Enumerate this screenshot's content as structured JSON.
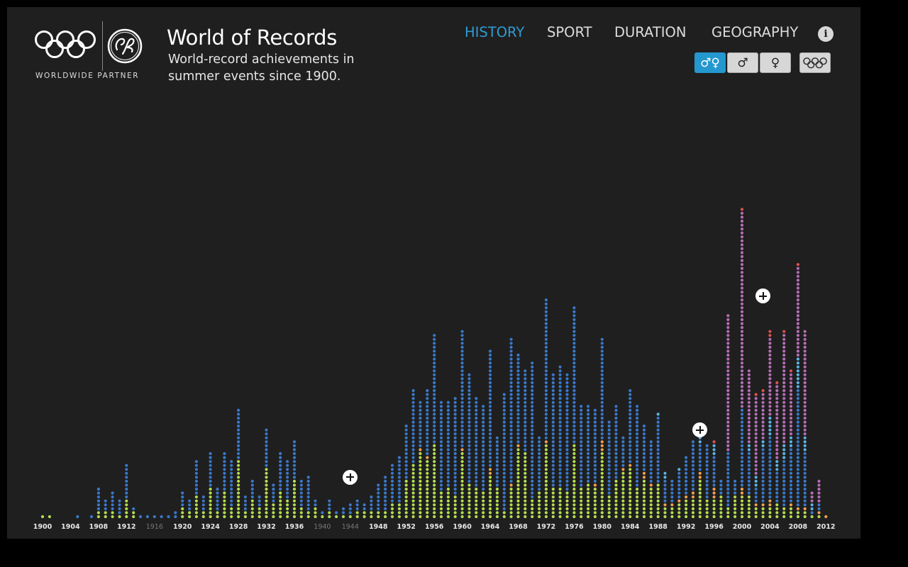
{
  "header": {
    "partner_label": "WORLDWIDE PARTNER",
    "title": "World of Records",
    "subtitle": "World-record achievements in summer events since 1900."
  },
  "nav": {
    "items": [
      {
        "label": "HISTORY",
        "active": true
      },
      {
        "label": "SPORT",
        "active": false
      },
      {
        "label": "DURATION",
        "active": false
      },
      {
        "label": "GEOGRAPHY",
        "active": false
      }
    ],
    "info_label": "i"
  },
  "filters": {
    "both_label": "♂♀",
    "men_label": "♂",
    "women_label": "♀",
    "selected": "both",
    "olympics_icon": "olympic-rings-icon"
  },
  "colors": {
    "background": "#1f1f1f",
    "accent": "#2e9bd1",
    "categories": {
      "green": "#b4dc50",
      "orange": "#f0a050",
      "blue": "#3a78c8",
      "lightblue": "#5ab4e6",
      "purple": "#b46eb4",
      "red": "#e05050"
    }
  },
  "chart_data": {
    "type": "bar",
    "subtype": "stacked-dot-columns",
    "x": [
      1900,
      1901,
      1902,
      1903,
      1904,
      1905,
      1906,
      1907,
      1908,
      1909,
      1910,
      1911,
      1912,
      1913,
      1914,
      1915,
      1916,
      1917,
      1918,
      1919,
      1920,
      1921,
      1922,
      1923,
      1924,
      1925,
      1926,
      1927,
      1928,
      1929,
      1930,
      1931,
      1932,
      1933,
      1934,
      1935,
      1936,
      1937,
      1938,
      1939,
      1940,
      1941,
      1942,
      1943,
      1944,
      1945,
      1946,
      1947,
      1948,
      1949,
      1950,
      1951,
      1952,
      1953,
      1954,
      1955,
      1956,
      1957,
      1958,
      1959,
      1960,
      1961,
      1962,
      1963,
      1964,
      1965,
      1966,
      1967,
      1968,
      1969,
      1970,
      1971,
      1972,
      1973,
      1974,
      1975,
      1976,
      1977,
      1978,
      1979,
      1980,
      1981,
      1982,
      1983,
      1984,
      1985,
      1986,
      1987,
      1988,
      1989,
      1990,
      1991,
      1992,
      1993,
      1994,
      1995,
      1996,
      1997,
      1998,
      1999,
      2000,
      2001,
      2002,
      2003,
      2004,
      2005,
      2006,
      2007,
      2008,
      2009,
      2010,
      2011,
      2012
    ],
    "tick_labels": [
      "1900",
      "1904",
      "1908",
      "1912",
      "1916",
      "1920",
      "1924",
      "1928",
      "1932",
      "1936",
      "1940",
      "1944",
      "1948",
      "1952",
      "1956",
      "1960",
      "1964",
      "1968",
      "1972",
      "1976",
      "1980",
      "1984",
      "1988",
      "1992",
      "1996",
      "2000",
      "2004",
      "2008",
      "2012"
    ],
    "olympic_years": [
      1900,
      1904,
      1908,
      1912,
      1920,
      1924,
      1928,
      1932,
      1936,
      1948,
      1952,
      1956,
      1960,
      1964,
      1968,
      1972,
      1976,
      1980,
      1984,
      1988,
      1992,
      1996,
      2000,
      2004,
      2008,
      2012
    ],
    "cancelled_years": [
      1916,
      1940,
      1944
    ],
    "series": [
      {
        "color": "green",
        "values": [
          1,
          1,
          0,
          0,
          0,
          0,
          0,
          0,
          2,
          2,
          2,
          1,
          5,
          2,
          0,
          0,
          0,
          0,
          0,
          0,
          3,
          2,
          6,
          2,
          8,
          2,
          7,
          3,
          15,
          2,
          5,
          3,
          13,
          4,
          7,
          5,
          10,
          3,
          2,
          3,
          1,
          2,
          1,
          1,
          1,
          2,
          2,
          2,
          2,
          2,
          4,
          4,
          10,
          14,
          17,
          15,
          19,
          7,
          8,
          6,
          17,
          9,
          8,
          7,
          11,
          8,
          2,
          8,
          18,
          17,
          5,
          7,
          19,
          8,
          8,
          7,
          19,
          8,
          9,
          8,
          17,
          6,
          10,
          12,
          13,
          8,
          10,
          8,
          9,
          3,
          3,
          4,
          5,
          5,
          10,
          5,
          5,
          6,
          3,
          6,
          6,
          6,
          3,
          3,
          3,
          4,
          3,
          3,
          2,
          2,
          1,
          1,
          0
        ]
      },
      {
        "color": "orange",
        "values": [
          0,
          0,
          0,
          0,
          0,
          0,
          0,
          0,
          0,
          0,
          0,
          0,
          0,
          0,
          0,
          0,
          0,
          0,
          0,
          0,
          0,
          0,
          0,
          0,
          0,
          0,
          0,
          0,
          0,
          0,
          0,
          0,
          0,
          0,
          0,
          0,
          0,
          0,
          0,
          0,
          0,
          0,
          0,
          0,
          0,
          0,
          0,
          0,
          0,
          0,
          0,
          0,
          0,
          0,
          1,
          1,
          0,
          0,
          0,
          0,
          1,
          0,
          0,
          0,
          2,
          0,
          0,
          1,
          1,
          0,
          0,
          0,
          1,
          0,
          0,
          0,
          0,
          0,
          0,
          1,
          3,
          0,
          0,
          1,
          1,
          0,
          2,
          1,
          0,
          1,
          1,
          1,
          1,
          2,
          2,
          0,
          3,
          0,
          0,
          0,
          2,
          0,
          1,
          1,
          2,
          0,
          0,
          1,
          1,
          1,
          0,
          1,
          1
        ]
      },
      {
        "color": "blue",
        "values": [
          0,
          0,
          0,
          0,
          0,
          1,
          0,
          1,
          6,
          3,
          5,
          4,
          9,
          1,
          1,
          1,
          1,
          1,
          1,
          2,
          4,
          3,
          9,
          4,
          9,
          6,
          10,
          12,
          13,
          4,
          5,
          3,
          10,
          5,
          10,
          10,
          10,
          7,
          9,
          2,
          1,
          3,
          1,
          2,
          3,
          3,
          2,
          4,
          7,
          9,
          10,
          12,
          14,
          19,
          12,
          17,
          28,
          23,
          22,
          25,
          30,
          28,
          23,
          22,
          30,
          13,
          30,
          37,
          23,
          21,
          35,
          14,
          36,
          29,
          31,
          30,
          35,
          21,
          20,
          19,
          26,
          19,
          19,
          8,
          19,
          21,
          12,
          11,
          17,
          6,
          6,
          7,
          10,
          13,
          7,
          14,
          8,
          4,
          14,
          4,
          20,
          11,
          4,
          14,
          16,
          8,
          12,
          14,
          30,
          14,
          1,
          2,
          0
        ]
      },
      {
        "color": "lightblue",
        "values": [
          0,
          0,
          0,
          0,
          0,
          0,
          0,
          0,
          0,
          0,
          0,
          0,
          0,
          0,
          0,
          0,
          0,
          0,
          0,
          0,
          0,
          0,
          0,
          0,
          0,
          0,
          0,
          0,
          0,
          0,
          0,
          0,
          0,
          0,
          0,
          0,
          0,
          0,
          0,
          0,
          0,
          0,
          0,
          0,
          0,
          0,
          0,
          0,
          0,
          0,
          0,
          0,
          0,
          0,
          0,
          0,
          0,
          0,
          0,
          0,
          0,
          0,
          0,
          0,
          0,
          0,
          0,
          0,
          0,
          0,
          0,
          0,
          0,
          0,
          0,
          0,
          0,
          0,
          0,
          0,
          0,
          0,
          0,
          0,
          0,
          0,
          0,
          0,
          1,
          2,
          0,
          1,
          0,
          0,
          3,
          0,
          3,
          0,
          0,
          0,
          0,
          2,
          3,
          2,
          5,
          3,
          4,
          3,
          8,
          4,
          2,
          0,
          0
        ]
      },
      {
        "color": "purple",
        "values": [
          0,
          0,
          0,
          0,
          0,
          0,
          0,
          0,
          0,
          0,
          0,
          0,
          0,
          0,
          0,
          0,
          0,
          0,
          0,
          0,
          0,
          0,
          0,
          0,
          0,
          0,
          0,
          0,
          0,
          0,
          0,
          0,
          0,
          0,
          0,
          0,
          0,
          0,
          0,
          0,
          0,
          0,
          0,
          0,
          0,
          0,
          0,
          0,
          0,
          0,
          0,
          0,
          0,
          0,
          0,
          0,
          0,
          0,
          0,
          0,
          0,
          0,
          0,
          0,
          0,
          0,
          0,
          0,
          0,
          0,
          0,
          0,
          0,
          0,
          0,
          0,
          0,
          0,
          0,
          0,
          0,
          0,
          0,
          0,
          0,
          0,
          0,
          0,
          0,
          0,
          0,
          0,
          0,
          0,
          0,
          0,
          0,
          0,
          35,
          0,
          50,
          19,
          20,
          12,
          20,
          19,
          28,
          16,
          23,
          27,
          3,
          6,
          0
        ]
      },
      {
        "color": "red",
        "values": [
          0,
          0,
          0,
          0,
          0,
          0,
          0,
          0,
          0,
          0,
          0,
          0,
          0,
          0,
          0,
          0,
          0,
          0,
          0,
          0,
          0,
          0,
          0,
          0,
          0,
          0,
          0,
          0,
          0,
          0,
          0,
          0,
          0,
          0,
          0,
          0,
          0,
          0,
          0,
          0,
          0,
          0,
          0,
          0,
          0,
          0,
          0,
          0,
          0,
          0,
          0,
          0,
          0,
          0,
          0,
          0,
          0,
          0,
          0,
          0,
          0,
          0,
          0,
          0,
          0,
          0,
          0,
          0,
          0,
          0,
          0,
          0,
          0,
          0,
          0,
          0,
          0,
          0,
          0,
          0,
          0,
          0,
          0,
          0,
          0,
          0,
          0,
          0,
          0,
          0,
          0,
          0,
          0,
          0,
          0,
          0,
          1,
          0,
          0,
          0,
          1,
          0,
          1,
          1,
          2,
          1,
          1,
          1,
          1,
          0,
          0,
          0,
          0
        ]
      }
    ],
    "annotation_markers": [
      {
        "x": 1944,
        "level": 10
      },
      {
        "x": 1994,
        "level": 22
      },
      {
        "x": 2003,
        "level": 56
      }
    ]
  }
}
